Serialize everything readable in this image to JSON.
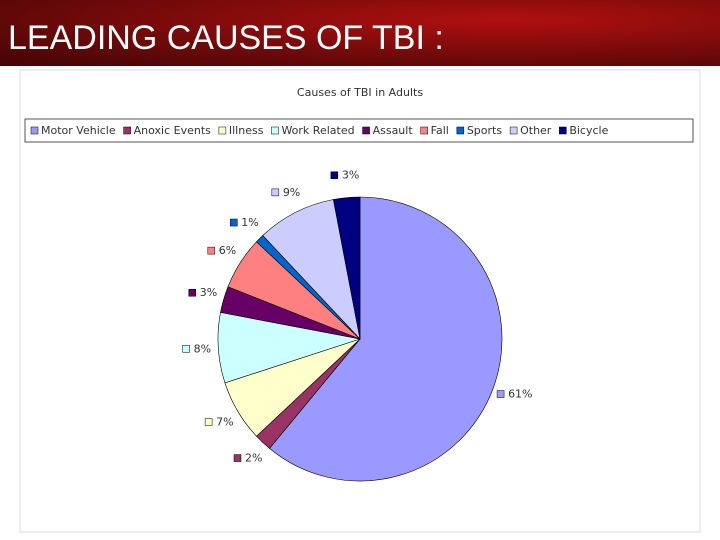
{
  "slide": {
    "title": "LEADING CAUSES OF TBI :"
  },
  "chart_data": {
    "type": "pie",
    "title": "Causes of TBI in Adults",
    "categories": [
      "Motor Vehicle",
      "Anoxic Events",
      "Illness",
      "Work Related",
      "Assault",
      "Fall",
      "Sports",
      "Other",
      "Bicycle"
    ],
    "values": [
      61,
      2,
      7,
      8,
      3,
      6,
      1,
      9,
      3
    ],
    "value_labels": [
      "61%",
      "2%",
      "7%",
      "8%",
      "3%",
      "6%",
      "1%",
      "9%",
      "3%"
    ],
    "colors": [
      "#9999ff",
      "#993366",
      "#ffffcc",
      "#ccffff",
      "#660066",
      "#ff8080",
      "#0066cc",
      "#ccccff",
      "#000080"
    ],
    "legend": "top"
  }
}
